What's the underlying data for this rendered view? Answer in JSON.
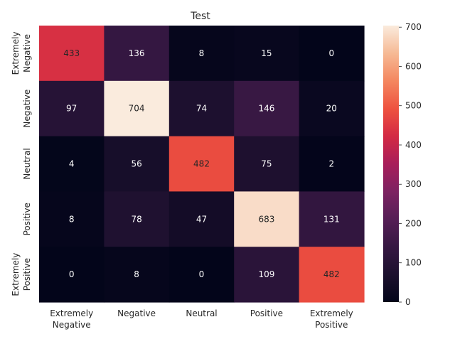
{
  "chart_data": {
    "type": "heatmap",
    "title": "Test",
    "xlabel": "",
    "ylabel": "",
    "x_categories": [
      "Extremely Negative",
      "Negative",
      "Neutral",
      "Positive",
      "Extremely Positive"
    ],
    "y_categories": [
      "Extremely Negative",
      "Negative",
      "Neutral",
      "Positive",
      "Extremely Positive"
    ],
    "x_tick_labels": [
      [
        "Extremely",
        "Negative"
      ],
      [
        "Negative"
      ],
      [
        "Neutral"
      ],
      [
        "Positive"
      ],
      [
        "Extremely",
        "Positive"
      ]
    ],
    "y_tick_labels": [
      [
        "Extremely",
        "Negative"
      ],
      [
        "Negative"
      ],
      [
        "Neutral"
      ],
      [
        "Positive"
      ],
      [
        "Extremely",
        "Positive"
      ]
    ],
    "values": [
      [
        433,
        136,
        8,
        15,
        0
      ],
      [
        97,
        704,
        74,
        146,
        20
      ],
      [
        4,
        56,
        482,
        75,
        2
      ],
      [
        8,
        78,
        47,
        683,
        131
      ],
      [
        0,
        8,
        0,
        109,
        482
      ]
    ],
    "colorbar": {
      "min": 0,
      "max": 704,
      "ticks": [
        0,
        100,
        200,
        300,
        400,
        500,
        600,
        700
      ],
      "colormap": "rocket"
    },
    "grid": false,
    "legend": "colorbar-right"
  }
}
